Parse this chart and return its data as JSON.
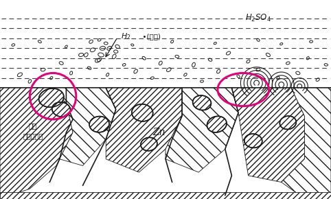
{
  "bg_color": "#ffffff",
  "line_color": "#1a1a1a",
  "circle_color": "#e8007a",
  "figsize": [
    4.82,
    2.9
  ],
  "dpi": 100,
  "label_H2": "H$_2$",
  "label_bubble": "（气泡）",
  "label_H2SO4": "H$_2$SO$_4$",
  "label_impurity": "杂质\n（夹杂物）",
  "label_Zn": "Zn"
}
